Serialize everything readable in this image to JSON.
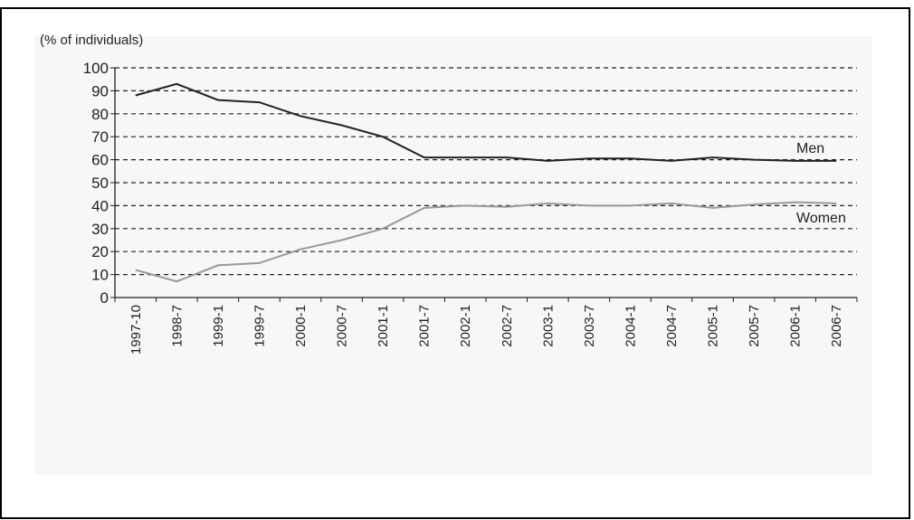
{
  "chart_data": {
    "type": "line",
    "ylabel": "(% of individuals)",
    "ylim": [
      0,
      100
    ],
    "yticks": [
      "0",
      "10",
      "20",
      "30",
      "40",
      "50",
      "60",
      "70",
      "80",
      "90",
      "100"
    ],
    "categories": [
      "1997-10",
      "1998-7",
      "1999-1",
      "1999-7",
      "2000-1",
      "2000-7",
      "2001-1",
      "2001-7",
      "2002-1",
      "2002-7",
      "2003-1",
      "2003-7",
      "2004-1",
      "2004-7",
      "2005-1",
      "2005-7",
      "2006-1",
      "2006-7"
    ],
    "grid": "horizontal dashed",
    "series": [
      {
        "name": "Men",
        "color": "#222222",
        "values": [
          88,
          93,
          86,
          85,
          79,
          75,
          70,
          61,
          61,
          61,
          59.5,
          60.5,
          60.5,
          59.5,
          61,
          60,
          59.5,
          59.5
        ]
      },
      {
        "name": "Women",
        "color": "#999999",
        "values": [
          12,
          7,
          14,
          15,
          21,
          25,
          30,
          39,
          40,
          39.5,
          41,
          40,
          40,
          41,
          39,
          40.5,
          41.5,
          41
        ]
      }
    ]
  }
}
